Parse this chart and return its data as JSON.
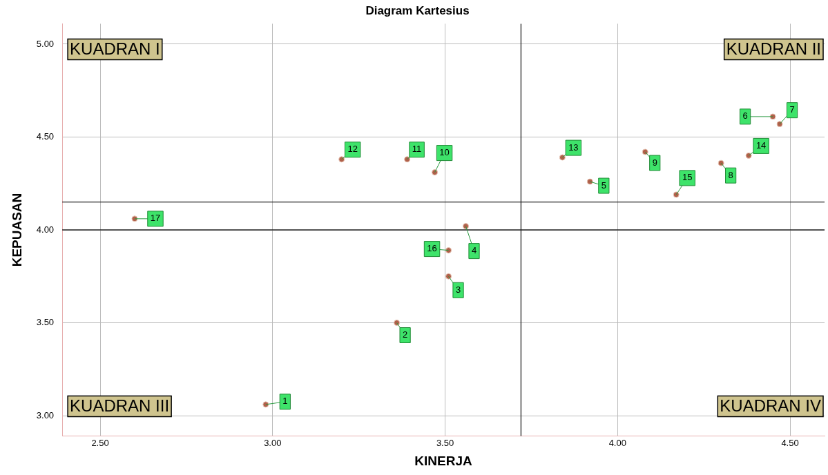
{
  "chart_data": {
    "type": "scatter",
    "title": "Diagram Kartesius",
    "xlabel": "KINERJA",
    "ylabel": "KEPUASAN",
    "x": [
      2.98,
      3.36,
      3.51,
      3.56,
      3.92,
      4.45,
      4.47,
      4.3,
      4.08,
      3.47,
      3.39,
      3.2,
      3.84,
      4.38,
      4.17,
      3.51,
      2.6
    ],
    "series": [
      {
        "color": "#b0604a",
        "values": [
          3.06,
          3.5,
          3.75,
          4.02,
          4.26,
          4.61,
          4.57,
          4.36,
          4.42,
          4.31,
          4.38,
          4.38,
          4.39,
          4.4,
          4.19,
          3.89,
          4.06
        ]
      }
    ],
    "xlim": [
      2.39,
      4.6
    ],
    "ylim": [
      2.89,
      5.11
    ],
    "xticks": [
      {
        "value": 2.5,
        "label": "2.50"
      },
      {
        "value": 3,
        "label": "3.00"
      },
      {
        "value": 3.5,
        "label": "3.50"
      },
      {
        "value": 4,
        "label": "4.00"
      },
      {
        "value": 4.5,
        "label": "4.50"
      }
    ],
    "yticks": [
      {
        "value": 3,
        "label": "3.00"
      },
      {
        "value": 3.5,
        "label": "3.50"
      },
      {
        "value": 4,
        "label": "4.00"
      },
      {
        "value": 4.5,
        "label": "4.50"
      },
      {
        "value": 5,
        "label": "5.00"
      }
    ],
    "ref_lines": [
      {
        "axis": "x",
        "value": 3.72,
        "color": "#222222"
      },
      {
        "axis": "y",
        "value": 4.15,
        "color": "#222222"
      },
      {
        "axis": "y",
        "value": 4.0,
        "color": "#222222"
      }
    ],
    "annotations": [
      "KUADRAN I",
      "KUADRAN II",
      "KUADRAN III",
      "KUADRAN IV",
      {
        "text": "1",
        "x": 2.98,
        "y": 3.06
      },
      {
        "text": "2",
        "x": 3.36,
        "y": 3.5
      },
      {
        "text": "3",
        "x": 3.51,
        "y": 3.75
      },
      {
        "text": "4",
        "x": 3.56,
        "y": 4.02
      },
      {
        "text": "5",
        "x": 3.92,
        "y": 4.26
      },
      {
        "text": "6",
        "x": 4.45,
        "y": 4.61
      },
      {
        "text": "7",
        "x": 4.47,
        "y": 4.57
      },
      {
        "text": "8",
        "x": 4.3,
        "y": 4.36
      },
      {
        "text": "9",
        "x": 4.08,
        "y": 4.42
      },
      {
        "text": "10",
        "x": 3.47,
        "y": 4.31
      },
      {
        "text": "11",
        "x": 3.39,
        "y": 4.38
      },
      {
        "text": "12",
        "x": 3.2,
        "y": 4.38
      },
      {
        "text": "13",
        "x": 3.84,
        "y": 4.39
      },
      {
        "text": "14",
        "x": 4.38,
        "y": 4.4
      },
      {
        "text": "15",
        "x": 4.17,
        "y": 4.19
      },
      {
        "text": "16",
        "x": 3.51,
        "y": 3.89
      },
      {
        "text": "17",
        "x": 2.6,
        "y": 4.06
      }
    ],
    "grid": true,
    "legend": false,
    "marker": "circle"
  }
}
